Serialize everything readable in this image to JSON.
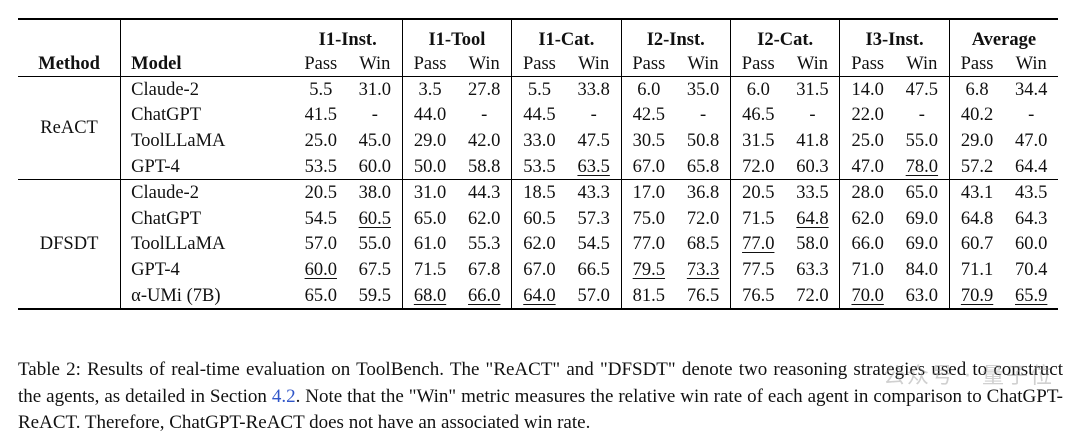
{
  "table": {
    "method_header": "Method",
    "model_header": "Model",
    "groups": [
      "I1-Inst.",
      "I1-Tool",
      "I1-Cat.",
      "I2-Inst.",
      "I2-Cat.",
      "I3-Inst.",
      "Average"
    ],
    "sub_headers": [
      "Pass",
      "Win"
    ],
    "sections": [
      {
        "method": "ReACT",
        "rows": [
          {
            "model": "Claude-2",
            "cells": [
              {
                "v": "5.5"
              },
              {
                "v": "31.0"
              },
              {
                "v": "3.5"
              },
              {
                "v": "27.8"
              },
              {
                "v": "5.5"
              },
              {
                "v": "33.8"
              },
              {
                "v": "6.0"
              },
              {
                "v": "35.0"
              },
              {
                "v": "6.0"
              },
              {
                "v": "31.5"
              },
              {
                "v": "14.0"
              },
              {
                "v": "47.5"
              },
              {
                "v": "6.8"
              },
              {
                "v": "34.4"
              }
            ]
          },
          {
            "model": "ChatGPT",
            "cells": [
              {
                "v": "41.5"
              },
              {
                "v": "-"
              },
              {
                "v": "44.0"
              },
              {
                "v": "-"
              },
              {
                "v": "44.5"
              },
              {
                "v": "-"
              },
              {
                "v": "42.5"
              },
              {
                "v": "-"
              },
              {
                "v": "46.5"
              },
              {
                "v": "-"
              },
              {
                "v": "22.0"
              },
              {
                "v": "-"
              },
              {
                "v": "40.2"
              },
              {
                "v": "-"
              }
            ]
          },
          {
            "model": "ToolLLaMA",
            "cells": [
              {
                "v": "25.0"
              },
              {
                "v": "45.0"
              },
              {
                "v": "29.0"
              },
              {
                "v": "42.0"
              },
              {
                "v": "33.0"
              },
              {
                "v": "47.5"
              },
              {
                "v": "30.5"
              },
              {
                "v": "50.8"
              },
              {
                "v": "31.5"
              },
              {
                "v": "41.8"
              },
              {
                "v": "25.0"
              },
              {
                "v": "55.0"
              },
              {
                "v": "29.0"
              },
              {
                "v": "47.0"
              }
            ]
          },
          {
            "model": "GPT-4",
            "cells": [
              {
                "v": "53.5"
              },
              {
                "v": "60.0"
              },
              {
                "v": "50.0"
              },
              {
                "v": "58.8"
              },
              {
                "v": "53.5"
              },
              {
                "v": "63.5",
                "u": true
              },
              {
                "v": "67.0"
              },
              {
                "v": "65.8"
              },
              {
                "v": "72.0"
              },
              {
                "v": "60.3"
              },
              {
                "v": "47.0"
              },
              {
                "v": "78.0",
                "u": true
              },
              {
                "v": "57.2"
              },
              {
                "v": "64.4"
              }
            ]
          }
        ]
      },
      {
        "method": "DFSDT",
        "rows": [
          {
            "model": "Claude-2",
            "cells": [
              {
                "v": "20.5"
              },
              {
                "v": "38.0"
              },
              {
                "v": "31.0"
              },
              {
                "v": "44.3"
              },
              {
                "v": "18.5"
              },
              {
                "v": "43.3"
              },
              {
                "v": "17.0"
              },
              {
                "v": "36.8"
              },
              {
                "v": "20.5"
              },
              {
                "v": "33.5"
              },
              {
                "v": "28.0"
              },
              {
                "v": "65.0"
              },
              {
                "v": "43.1"
              },
              {
                "v": "43.5"
              }
            ]
          },
          {
            "model": "ChatGPT",
            "cells": [
              {
                "v": "54.5"
              },
              {
                "v": "60.5",
                "u": true
              },
              {
                "v": "65.0"
              },
              {
                "v": "62.0"
              },
              {
                "v": "60.5"
              },
              {
                "v": "57.3"
              },
              {
                "v": "75.0"
              },
              {
                "v": "72.0"
              },
              {
                "v": "71.5"
              },
              {
                "v": "64.8",
                "u": true
              },
              {
                "v": "62.0"
              },
              {
                "v": "69.0"
              },
              {
                "v": "64.8"
              },
              {
                "v": "64.3"
              }
            ]
          },
          {
            "model": "ToolLLaMA",
            "cells": [
              {
                "v": "57.0"
              },
              {
                "v": "55.0"
              },
              {
                "v": "61.0"
              },
              {
                "v": "55.3"
              },
              {
                "v": "62.0"
              },
              {
                "v": "54.5"
              },
              {
                "v": "77.0"
              },
              {
                "v": "68.5"
              },
              {
                "v": "77.0",
                "u": true
              },
              {
                "v": "58.0"
              },
              {
                "v": "66.0"
              },
              {
                "v": "69.0"
              },
              {
                "v": "60.7"
              },
              {
                "v": "60.0"
              }
            ]
          },
          {
            "model": "GPT-4",
            "cells": [
              {
                "v": "60.0",
                "u": true
              },
              {
                "v": "67.5",
                "b": true
              },
              {
                "v": "71.5",
                "b": true
              },
              {
                "v": "67.8",
                "b": true
              },
              {
                "v": "67.0",
                "b": true
              },
              {
                "v": "66.5",
                "b": true
              },
              {
                "v": "79.5",
                "u": true
              },
              {
                "v": "73.3",
                "u": true
              },
              {
                "v": "77.5",
                "b": true
              },
              {
                "v": "63.3"
              },
              {
                "v": "71.0",
                "b": true
              },
              {
                "v": "84.0",
                "b": true
              },
              {
                "v": "71.1",
                "b": true
              },
              {
                "v": "70.4",
                "b": true
              }
            ]
          },
          {
            "model": "α-UMi (7B)",
            "cells": [
              {
                "v": "65.0",
                "b": true
              },
              {
                "v": "59.5"
              },
              {
                "v": "68.0",
                "u": true
              },
              {
                "v": "66.0",
                "u": true
              },
              {
                "v": "64.0",
                "u": true
              },
              {
                "v": "57.0"
              },
              {
                "v": "81.5",
                "b": true
              },
              {
                "v": "76.5",
                "b": true
              },
              {
                "v": "76.5"
              },
              {
                "v": "72.0",
                "b": true
              },
              {
                "v": "70.0",
                "u": true
              },
              {
                "v": "63.0"
              },
              {
                "v": "70.9",
                "u": true
              },
              {
                "v": "65.9",
                "u": true
              }
            ]
          }
        ]
      }
    ]
  },
  "caption": {
    "before_ref": "Table 2: Results of real-time evaluation on ToolBench. The \"ReACT\" and \"DFSDT\" denote two reasoning strategies used to construct the agents, as detailed in Section ",
    "ref": "4.2",
    "after_ref": ". Note that the \"Win\" metric measures the relative win rate of each agent in comparison to ChatGPT-ReACT. Therefore, ChatGPT-ReACT does not have an associated win rate."
  },
  "watermark": "公众号 · 量子位"
}
